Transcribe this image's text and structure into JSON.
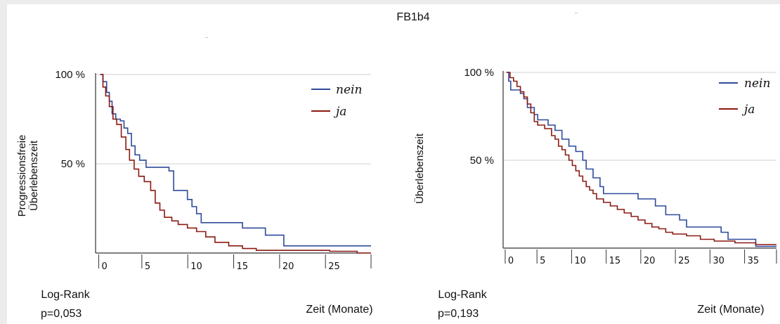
{
  "figure": {
    "title": "FB1b4",
    "xlabel": "Zeit (Monate)",
    "logrank_label": "Log-Rank"
  },
  "colors": {
    "nein": "#2e4a9a",
    "ja": "#8b1a12",
    "grid": "#cfcfcf",
    "axis": "#333333"
  },
  "chart_data": [
    {
      "type": "line",
      "title": "",
      "ylabel": "Progressionsfreie Überlebenszeit",
      "ylabel_lines": [
        "Progressionsfreie",
        "Überlebenszeit"
      ],
      "xlabel": "Zeit (Monate)",
      "xlim": [
        -0.5,
        29.5
      ],
      "ylim": [
        0,
        100
      ],
      "x_ticks": [
        0,
        5,
        10,
        15,
        20,
        25
      ],
      "y_tick_labels": [
        {
          "value": 100,
          "label": "100 %"
        },
        {
          "value": 50,
          "label": "50 %"
        }
      ],
      "grid": "horizontal at 100 % and 50 %",
      "legend_position": "top-right",
      "pvalue_text": "p=0,053",
      "series": [
        {
          "name": "nein",
          "step": true,
          "points": [
            [
              0,
              100
            ],
            [
              0.3,
              96
            ],
            [
              0.7,
              90
            ],
            [
              1.0,
              85
            ],
            [
              1.3,
              78
            ],
            [
              1.7,
              75
            ],
            [
              2.2,
              74
            ],
            [
              2.6,
              70
            ],
            [
              3.0,
              67
            ],
            [
              3.4,
              60
            ],
            [
              3.8,
              55
            ],
            [
              4.3,
              52
            ],
            [
              5.0,
              48
            ],
            [
              7.5,
              46
            ],
            [
              8.0,
              35
            ],
            [
              9.5,
              30
            ],
            [
              10.0,
              26
            ],
            [
              10.5,
              22
            ],
            [
              11.0,
              17
            ],
            [
              15.5,
              14
            ],
            [
              18.0,
              10
            ],
            [
              20.0,
              4
            ],
            [
              29.5,
              4
            ]
          ]
        },
        {
          "name": "ja",
          "step": true,
          "points": [
            [
              0,
              100
            ],
            [
              0.3,
              93
            ],
            [
              0.6,
              88
            ],
            [
              1.0,
              82
            ],
            [
              1.4,
              75
            ],
            [
              1.8,
              72
            ],
            [
              2.3,
              65
            ],
            [
              2.8,
              58
            ],
            [
              3.2,
              52
            ],
            [
              3.7,
              47
            ],
            [
              4.2,
              43
            ],
            [
              4.8,
              40
            ],
            [
              5.5,
              35
            ],
            [
              6.0,
              28
            ],
            [
              6.5,
              24
            ],
            [
              7.0,
              20
            ],
            [
              7.8,
              18
            ],
            [
              8.5,
              16
            ],
            [
              9.5,
              14
            ],
            [
              10.5,
              12
            ],
            [
              11.5,
              9
            ],
            [
              12.5,
              6
            ],
            [
              14.0,
              4
            ],
            [
              15.5,
              2.5
            ],
            [
              17.0,
              1.5
            ],
            [
              25.0,
              1
            ],
            [
              28.0,
              0
            ],
            [
              29.5,
              0
            ]
          ]
        }
      ]
    },
    {
      "type": "line",
      "title": "",
      "ylabel": "Überlebenszeit",
      "ylabel_lines": [
        "Überlebenszeit"
      ],
      "xlabel": "Zeit (Monate)",
      "xlim": [
        -0.5,
        39
      ],
      "ylim": [
        0,
        100
      ],
      "x_ticks": [
        0,
        5,
        10,
        15,
        20,
        25,
        30,
        35
      ],
      "y_tick_labels": [
        {
          "value": 100,
          "label": "100 %"
        },
        {
          "value": 50,
          "label": "50 %"
        }
      ],
      "grid": "horizontal at 100 % and 50 %",
      "legend_position": "top-right",
      "pvalue_text": "p=0,193",
      "series": [
        {
          "name": "nein",
          "step": true,
          "points": [
            [
              0,
              100
            ],
            [
              0.3,
              95
            ],
            [
              0.6,
              90
            ],
            [
              2.0,
              88
            ],
            [
              2.5,
              85
            ],
            [
              3.0,
              80
            ],
            [
              4.0,
              76
            ],
            [
              4.5,
              73
            ],
            [
              6.0,
              70
            ],
            [
              7.0,
              67
            ],
            [
              8.0,
              62
            ],
            [
              9.0,
              58
            ],
            [
              10.0,
              55
            ],
            [
              11.0,
              50
            ],
            [
              11.5,
              45
            ],
            [
              12.5,
              40
            ],
            [
              13.5,
              35
            ],
            [
              14.0,
              31
            ],
            [
              19.0,
              28
            ],
            [
              21.5,
              24
            ],
            [
              23.0,
              19
            ],
            [
              25.0,
              16
            ],
            [
              26.0,
              12
            ],
            [
              31.0,
              9
            ],
            [
              32.0,
              5
            ],
            [
              36.0,
              1
            ],
            [
              39,
              1
            ]
          ]
        },
        {
          "name": "ja",
          "step": true,
          "points": [
            [
              0,
              100
            ],
            [
              0.5,
              97
            ],
            [
              1.0,
              95
            ],
            [
              1.5,
              92
            ],
            [
              2.0,
              89
            ],
            [
              2.5,
              86
            ],
            [
              3.0,
              82
            ],
            [
              3.5,
              77
            ],
            [
              4.0,
              72
            ],
            [
              4.5,
              70
            ],
            [
              5.5,
              68
            ],
            [
              6.5,
              64
            ],
            [
              7.0,
              62
            ],
            [
              7.5,
              58
            ],
            [
              8.0,
              56
            ],
            [
              8.5,
              53
            ],
            [
              9.0,
              50
            ],
            [
              9.5,
              47
            ],
            [
              10.0,
              44
            ],
            [
              10.5,
              41
            ],
            [
              11.0,
              38
            ],
            [
              11.5,
              35
            ],
            [
              12.0,
              33
            ],
            [
              12.5,
              31
            ],
            [
              13.0,
              28
            ],
            [
              14.0,
              26
            ],
            [
              15.0,
              24
            ],
            [
              16.0,
              22
            ],
            [
              17.0,
              20
            ],
            [
              18.0,
              18
            ],
            [
              19.0,
              16
            ],
            [
              20.0,
              14
            ],
            [
              21.0,
              12
            ],
            [
              22.0,
              11
            ],
            [
              23.0,
              9
            ],
            [
              24.0,
              8
            ],
            [
              26.0,
              7
            ],
            [
              28.0,
              5
            ],
            [
              30.0,
              4
            ],
            [
              33.0,
              3
            ],
            [
              36.0,
              2
            ],
            [
              39,
              2
            ]
          ]
        }
      ]
    }
  ]
}
